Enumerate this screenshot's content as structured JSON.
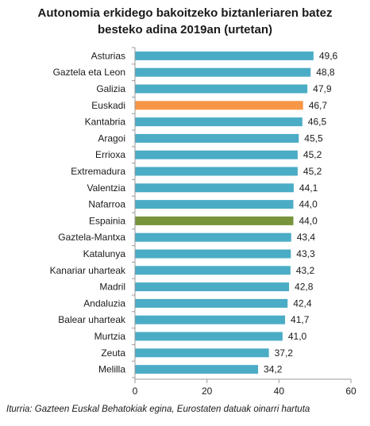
{
  "chart_data": {
    "type": "bar",
    "orientation": "horizontal",
    "title_lines": [
      "Autonomia erkidego bakoitzeko biztanleriaren batez",
      "besteko adina 2019an (urtetan)"
    ],
    "categories": [
      "Asturias",
      "Gaztela eta Leon",
      "Galizia",
      "Euskadi",
      "Kantabria",
      "Aragoi",
      "Errioxa",
      "Extremadura",
      "Valentzia",
      "Nafarroa",
      "Espainia",
      "Gaztela-Mantxa",
      "Katalunya",
      "Kanariar uharteak",
      "Madril",
      "Andaluzia",
      "Balear uharteak",
      "Murtzia",
      "Zeuta",
      "Melilla"
    ],
    "values": [
      49.6,
      48.8,
      47.9,
      46.7,
      46.5,
      45.5,
      45.2,
      45.2,
      44.1,
      44.0,
      44.0,
      43.4,
      43.3,
      43.2,
      42.8,
      42.4,
      41.7,
      41.0,
      37.2,
      34.2
    ],
    "value_labels": [
      "49,6",
      "48,8",
      "47,9",
      "46,7",
      "46,5",
      "45,5",
      "45,2",
      "45,2",
      "44,1",
      "44,0",
      "44,0",
      "43,4",
      "43,3",
      "43,2",
      "42,8",
      "42,4",
      "41,7",
      "41,0",
      "37,2",
      "34,2"
    ],
    "xlim": [
      0,
      60
    ],
    "xticks": [
      0,
      20,
      40,
      60
    ],
    "xtick_labels": [
      "0",
      "20",
      "40",
      "60"
    ],
    "grid": false,
    "legend": "none",
    "colors": {
      "default": "#4BACC6",
      "highlight": "#F79646",
      "total": "#77933C",
      "axis": "#9a9a9a"
    },
    "bar_colors": [
      "default",
      "default",
      "default",
      "highlight",
      "default",
      "default",
      "default",
      "default",
      "default",
      "default",
      "total",
      "default",
      "default",
      "default",
      "default",
      "default",
      "default",
      "default",
      "default",
      "default"
    ]
  },
  "source_text": "Iturria: Gazteen Euskal Behatokiak egina, Eurostaten datuak oinarri hartuta"
}
